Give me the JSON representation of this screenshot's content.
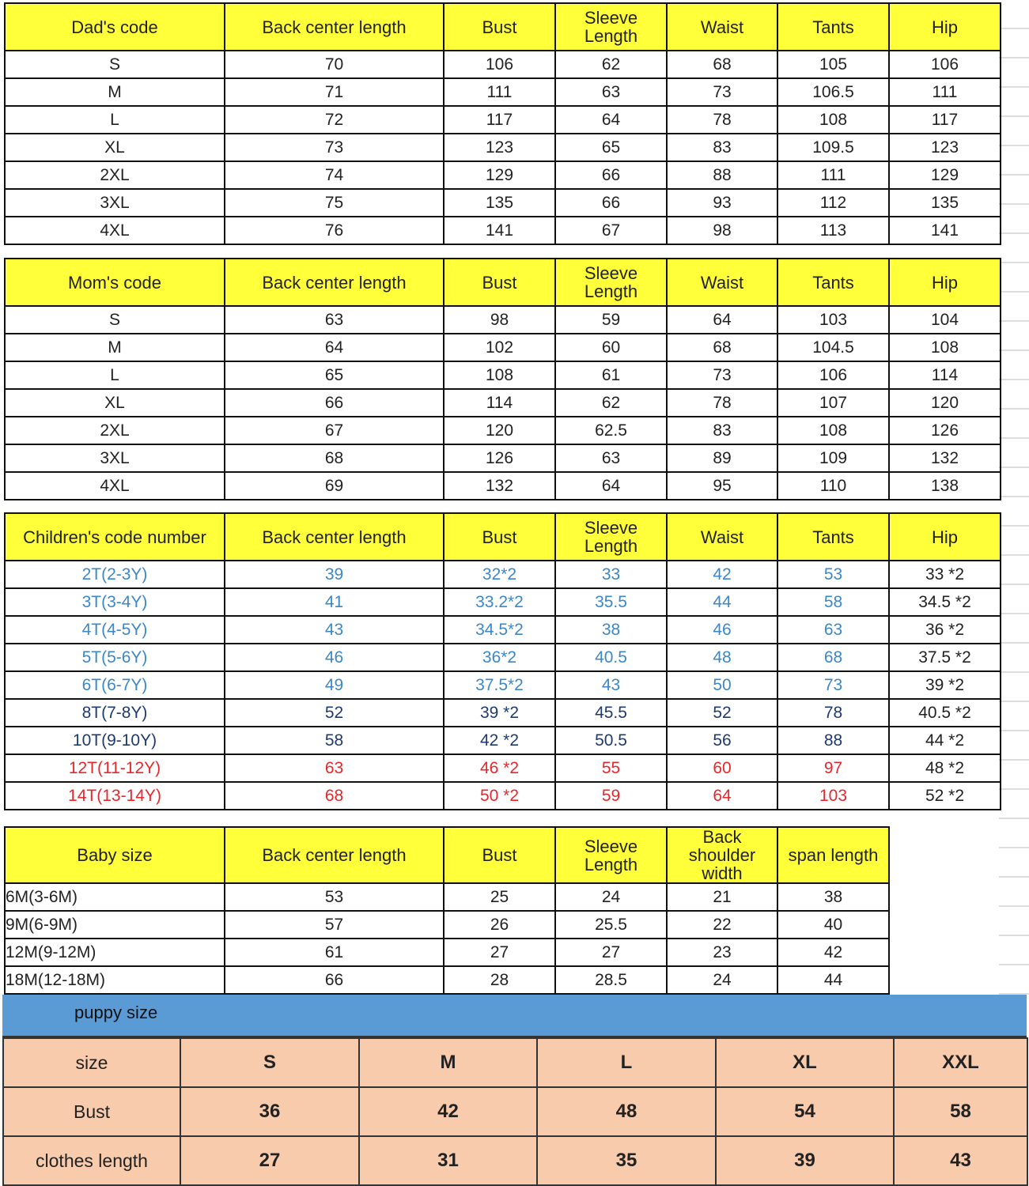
{
  "colors": {
    "header": "#ffff3a",
    "puppy_band": "#5b9bd5",
    "puppy_cells": "#f8cbad",
    "blue_text": "#3b87c9",
    "navy_text": "#1f3a6e",
    "red_text": "#e8262b"
  },
  "dad": {
    "headers": [
      "Dad's code",
      "Back center length",
      "Bust",
      "Sleeve Length",
      "Waist",
      "Tants",
      "Hip"
    ],
    "rows": [
      [
        "S",
        "70",
        "106",
        "62",
        "68",
        "105",
        "106"
      ],
      [
        "M",
        "71",
        "111",
        "63",
        "73",
        "106.5",
        "111"
      ],
      [
        "L",
        "72",
        "117",
        "64",
        "78",
        "108",
        "117"
      ],
      [
        "XL",
        "73",
        "123",
        "65",
        "83",
        "109.5",
        "123"
      ],
      [
        "2XL",
        "74",
        "129",
        "66",
        "88",
        "111",
        "129"
      ],
      [
        "3XL",
        "75",
        "135",
        "66",
        "93",
        "112",
        "135"
      ],
      [
        "4XL",
        "76",
        "141",
        "67",
        "98",
        "113",
        "141"
      ]
    ]
  },
  "mom": {
    "headers": [
      "Mom's code",
      "Back center length",
      "Bust",
      "Sleeve Length",
      "Waist",
      "Tants",
      "Hip"
    ],
    "rows": [
      [
        "S",
        "63",
        "98",
        "59",
        "64",
        "103",
        "104"
      ],
      [
        "M",
        "64",
        "102",
        "60",
        "68",
        "104.5",
        "108"
      ],
      [
        "L",
        "65",
        "108",
        "61",
        "73",
        "106",
        "114"
      ],
      [
        "XL",
        "66",
        "114",
        "62",
        "78",
        "107",
        "120"
      ],
      [
        "2XL",
        "67",
        "120",
        "62.5",
        "83",
        "108",
        "126"
      ],
      [
        "3XL",
        "68",
        "126",
        "63",
        "89",
        "109",
        "132"
      ],
      [
        "4XL",
        "69",
        "132",
        "64",
        "95",
        "110",
        "138"
      ]
    ]
  },
  "children": {
    "headers": [
      "Children's code number",
      "Back center length",
      "Bust",
      "Sleeve Length",
      "Waist",
      "Tants",
      "Hip"
    ],
    "rows": [
      [
        "2T(2-3Y)",
        "39",
        "32*2",
        "33",
        "42",
        "53",
        "33 *2"
      ],
      [
        "3T(3-4Y)",
        "41",
        "33.2*2",
        "35.5",
        "44",
        "58",
        "34.5 *2"
      ],
      [
        "4T(4-5Y)",
        "43",
        "34.5*2",
        "38",
        "46",
        "63",
        "36 *2"
      ],
      [
        "5T(5-6Y)",
        "46",
        "36*2",
        "40.5",
        "48",
        "68",
        "37.5 *2"
      ],
      [
        "6T(6-7Y)",
        "49",
        "37.5*2",
        "43",
        "50",
        "73",
        "39 *2"
      ],
      [
        "8T(7-8Y)",
        "52",
        "39 *2",
        "45.5",
        "52",
        "78",
        "40.5 *2"
      ],
      [
        "10T(9-10Y)",
        "58",
        "42 *2",
        "50.5",
        "56",
        "88",
        "44 *2"
      ],
      [
        "12T(11-12Y)",
        "63",
        "46 *2",
        "55",
        "60",
        "97",
        "48 *2"
      ],
      [
        "14T(13-14Y)",
        "68",
        "50 *2",
        "59",
        "64",
        "103",
        "52 *2"
      ]
    ],
    "row_colors": [
      "blue",
      "blue",
      "blue",
      "blue",
      "blue",
      "navy",
      "navy",
      "red",
      "red"
    ]
  },
  "baby": {
    "headers": [
      "Baby size",
      "Back center length",
      "Bust",
      "Sleeve Length",
      "Back shoulder width",
      "span length"
    ],
    "rows": [
      [
        "6M(3-6M)",
        "53",
        "25",
        "24",
        "21",
        "38"
      ],
      [
        "9M(6-9M)",
        "57",
        "26",
        "25.5",
        "22",
        "40"
      ],
      [
        "12M(9-12M)",
        "61",
        "27",
        "27",
        "23",
        "42"
      ],
      [
        "18M(12-18M)",
        "66",
        "28",
        "28.5",
        "24",
        "44"
      ]
    ]
  },
  "puppy": {
    "title": "puppy size",
    "rows": [
      [
        "size",
        "S",
        "M",
        "L",
        "XL",
        "XXL"
      ],
      [
        "Bust",
        "36",
        "42",
        "48",
        "54",
        "58"
      ],
      [
        "clothes length",
        "27",
        "31",
        "35",
        "39",
        "43"
      ]
    ]
  }
}
